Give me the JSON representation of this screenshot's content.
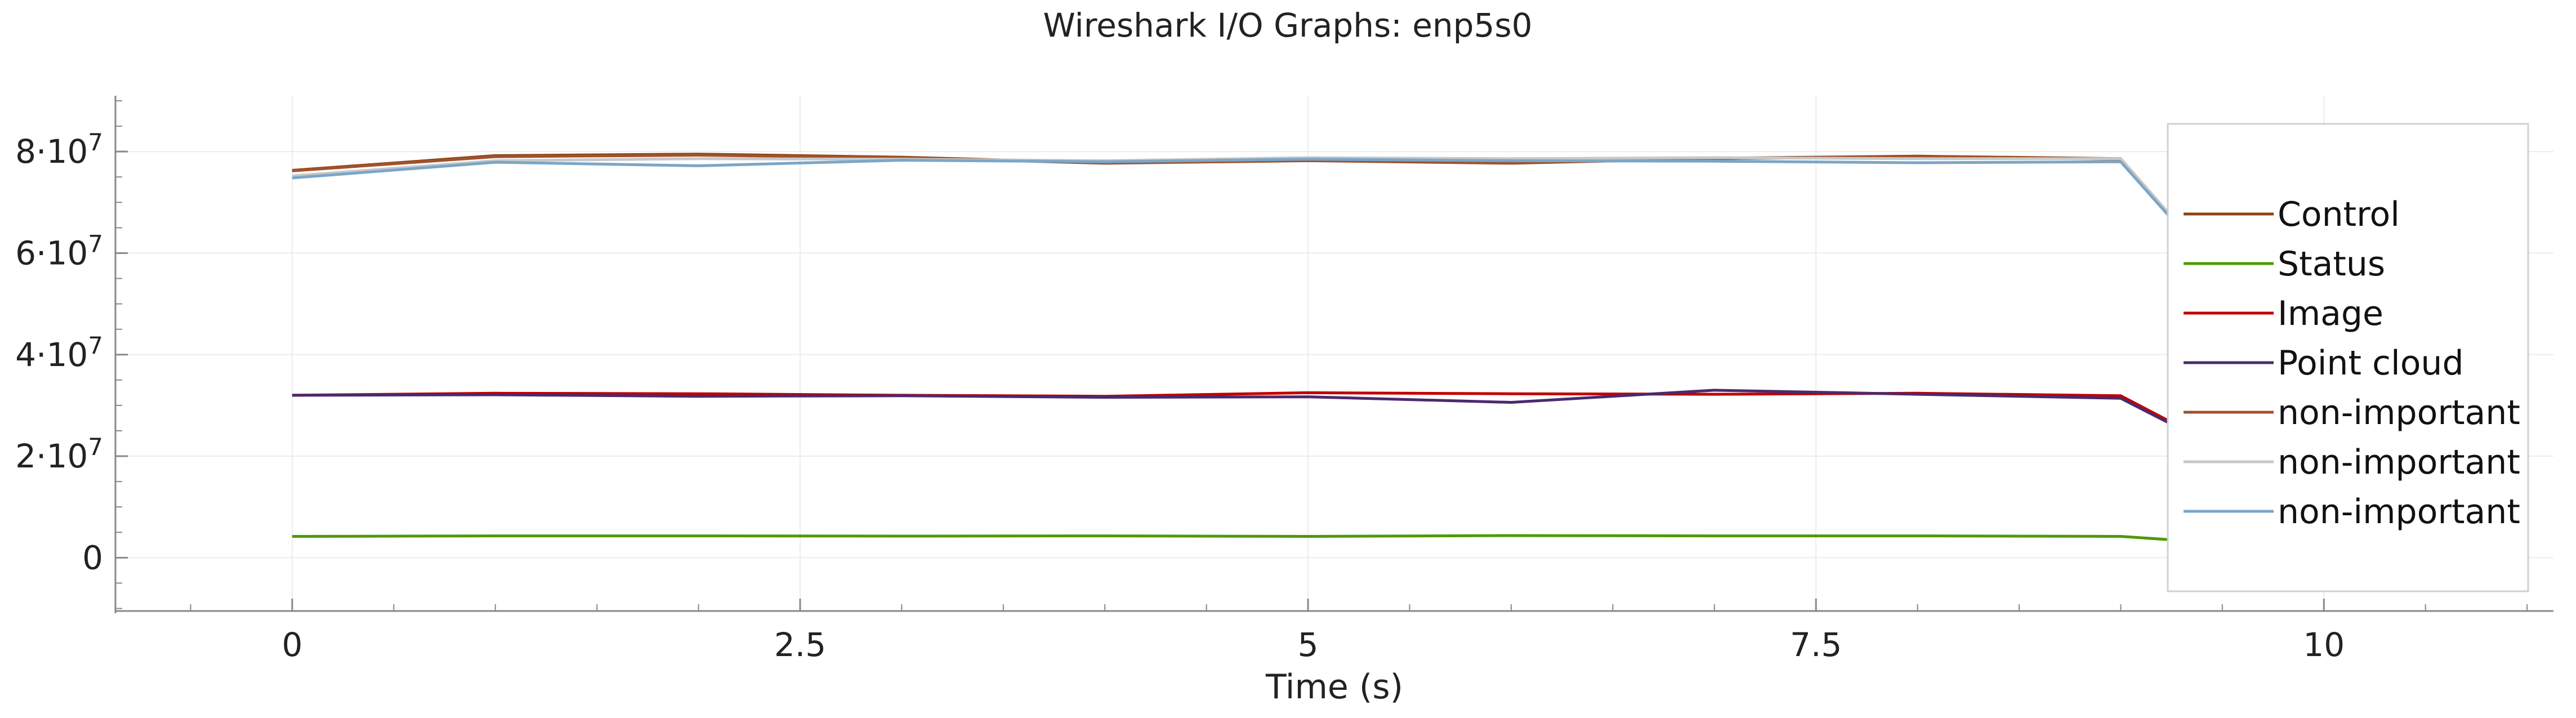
{
  "chart_data": {
    "type": "line",
    "title": "Wireshark I/O Graphs: enp5s0",
    "xlabel": "Time (s)",
    "ylabel": "",
    "xlim": [
      -0.87,
      11.13
    ],
    "ylim": [
      -10500000,
      91000000
    ],
    "xticks": [
      0,
      2.5,
      5,
      7.5,
      10
    ],
    "xtick_labels": [
      "0",
      "2.5",
      "5",
      "7.5",
      "10"
    ],
    "yticks": [
      0,
      20000000,
      40000000,
      60000000,
      80000000
    ],
    "ytick_labels": [
      {
        "base": "0",
        "exp": ""
      },
      {
        "base": "2·10",
        "exp": "7"
      },
      {
        "base": "4·10",
        "exp": "7"
      },
      {
        "base": "6·10",
        "exp": "7"
      },
      {
        "base": "8·10",
        "exp": "7"
      }
    ],
    "grid": true,
    "legend_position": "right",
    "series": [
      {
        "name": "Control",
        "color": "#8b4513",
        "x": [
          0,
          1,
          2,
          3,
          4,
          5,
          6,
          7,
          8,
          9,
          10
        ],
        "y": [
          76300000,
          79200000,
          79500000,
          78900000,
          77800000,
          78300000,
          77900000,
          78700000,
          79100000,
          78600000,
          33000000
        ]
      },
      {
        "name": "Status",
        "color": "#4e9a06",
        "x": [
          0,
          1,
          2,
          3,
          4,
          5,
          6,
          7,
          8,
          9,
          10
        ],
        "y": [
          4200000,
          4300000,
          4300000,
          4250000,
          4300000,
          4200000,
          4350000,
          4300000,
          4300000,
          4200000,
          1500000
        ]
      },
      {
        "name": "Image",
        "color": "#c00000",
        "x": [
          0,
          1,
          2,
          3,
          4,
          5,
          6,
          7,
          8,
          9,
          10
        ],
        "y": [
          32000000,
          32400000,
          32300000,
          32000000,
          31800000,
          32500000,
          32300000,
          32200000,
          32400000,
          31900000,
          11000000
        ]
      },
      {
        "name": "Point cloud",
        "color": "#4b2a6e",
        "x": [
          0,
          1,
          2,
          3,
          4,
          5,
          6,
          7,
          8,
          9,
          10
        ],
        "y": [
          32000000,
          32100000,
          31800000,
          31900000,
          31600000,
          31700000,
          30600000,
          33000000,
          32200000,
          31400000,
          11000000
        ]
      },
      {
        "name": "non-important",
        "color": "#a0522d",
        "x": [
          0,
          1,
          2,
          3,
          4,
          5,
          6,
          7,
          8,
          9,
          10
        ],
        "y": [
          76200000,
          79000000,
          79300000,
          78800000,
          77700000,
          78200000,
          77700000,
          78600000,
          79000000,
          78500000,
          33000000
        ]
      },
      {
        "name": "non-important",
        "color": "#c8c8c8",
        "x": [
          0,
          1,
          2,
          3,
          4,
          5,
          6,
          7,
          8,
          9,
          10
        ],
        "y": [
          75200000,
          78200000,
          78600000,
          78500000,
          78200000,
          78800000,
          78600000,
          78800000,
          78600000,
          78600000,
          33000000
        ]
      },
      {
        "name": "non-important",
        "color": "#7aa6c8",
        "x": [
          0,
          1,
          2,
          3,
          4,
          5,
          6,
          7,
          8,
          9,
          10
        ],
        "y": [
          74800000,
          77900000,
          77200000,
          78300000,
          78000000,
          78500000,
          78200000,
          78100000,
          77800000,
          78000000,
          33000000
        ]
      }
    ]
  }
}
